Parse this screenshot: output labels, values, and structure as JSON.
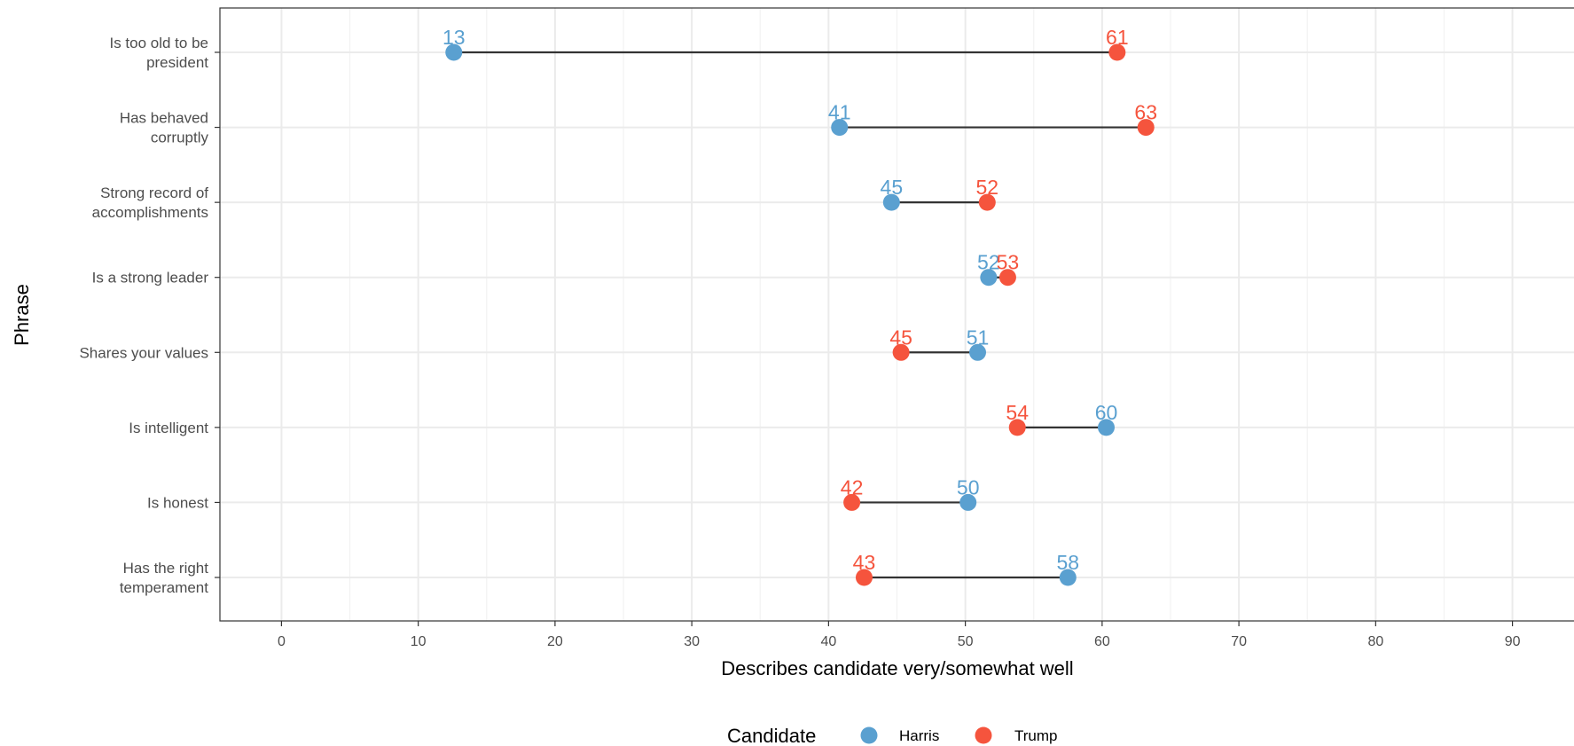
{
  "chart_data": {
    "type": "dumbbell",
    "xlabel": "Describes candidate very/somewhat well",
    "ylabel": "Phrase",
    "xlim": [
      -4.5,
      94.5
    ],
    "xticks": [
      0,
      10,
      20,
      30,
      40,
      50,
      60,
      70,
      80,
      90
    ],
    "grid": true,
    "legend": {
      "title": "Candidate",
      "position": "bottom"
    },
    "categories": [
      "Is too old to be\npresident",
      "Has behaved\ncorruptly",
      "Strong record of\naccomplishments",
      "Is a strong leader",
      "Shares your values",
      "Is intelligent",
      "Is honest",
      "Has the right\ntemperament"
    ],
    "series": [
      {
        "name": "Harris",
        "color": "#5aa0d0",
        "values": [
          12.6,
          40.8,
          44.6,
          51.7,
          50.9,
          60.3,
          50.2,
          57.5
        ],
        "labels": [
          "13",
          "41",
          "45",
          "52",
          "51",
          "60",
          "50",
          "58"
        ]
      },
      {
        "name": "Trump",
        "color": "#f5543d",
        "values": [
          61.1,
          63.2,
          51.6,
          53.1,
          45.3,
          53.8,
          41.7,
          42.6
        ],
        "labels": [
          "61",
          "63",
          "52",
          "53",
          "45",
          "54",
          "42",
          "43"
        ]
      }
    ]
  }
}
